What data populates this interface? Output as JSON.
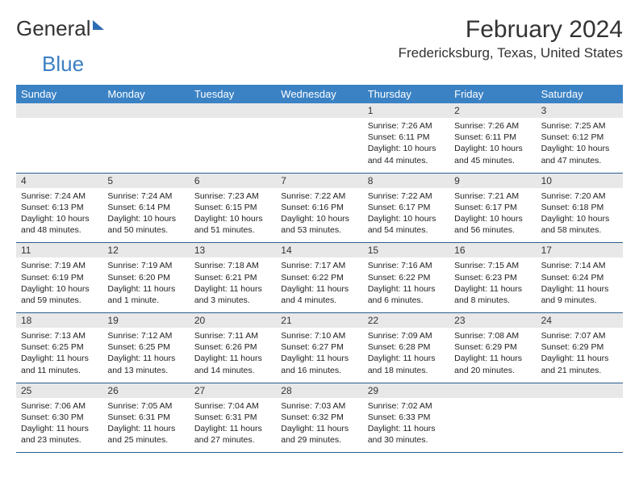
{
  "logo": {
    "part1": "General",
    "part2": "Blue"
  },
  "title": "February 2024",
  "location": "Fredericksburg, Texas, United States",
  "colors": {
    "header_bg": "#3b82c4",
    "header_text": "#ffffff",
    "daynum_bg": "#e8e8e8",
    "border": "#2b5f8f",
    "logo_blue": "#3b7ec2",
    "text": "#222222"
  },
  "weekdays": [
    "Sunday",
    "Monday",
    "Tuesday",
    "Wednesday",
    "Thursday",
    "Friday",
    "Saturday"
  ],
  "weeks": [
    [
      {
        "day": "",
        "lines": []
      },
      {
        "day": "",
        "lines": []
      },
      {
        "day": "",
        "lines": []
      },
      {
        "day": "",
        "lines": []
      },
      {
        "day": "1",
        "lines": [
          "Sunrise: 7:26 AM",
          "Sunset: 6:11 PM",
          "Daylight: 10 hours",
          "and 44 minutes."
        ]
      },
      {
        "day": "2",
        "lines": [
          "Sunrise: 7:26 AM",
          "Sunset: 6:11 PM",
          "Daylight: 10 hours",
          "and 45 minutes."
        ]
      },
      {
        "day": "3",
        "lines": [
          "Sunrise: 7:25 AM",
          "Sunset: 6:12 PM",
          "Daylight: 10 hours",
          "and 47 minutes."
        ]
      }
    ],
    [
      {
        "day": "4",
        "lines": [
          "Sunrise: 7:24 AM",
          "Sunset: 6:13 PM",
          "Daylight: 10 hours",
          "and 48 minutes."
        ]
      },
      {
        "day": "5",
        "lines": [
          "Sunrise: 7:24 AM",
          "Sunset: 6:14 PM",
          "Daylight: 10 hours",
          "and 50 minutes."
        ]
      },
      {
        "day": "6",
        "lines": [
          "Sunrise: 7:23 AM",
          "Sunset: 6:15 PM",
          "Daylight: 10 hours",
          "and 51 minutes."
        ]
      },
      {
        "day": "7",
        "lines": [
          "Sunrise: 7:22 AM",
          "Sunset: 6:16 PM",
          "Daylight: 10 hours",
          "and 53 minutes."
        ]
      },
      {
        "day": "8",
        "lines": [
          "Sunrise: 7:22 AM",
          "Sunset: 6:17 PM",
          "Daylight: 10 hours",
          "and 54 minutes."
        ]
      },
      {
        "day": "9",
        "lines": [
          "Sunrise: 7:21 AM",
          "Sunset: 6:17 PM",
          "Daylight: 10 hours",
          "and 56 minutes."
        ]
      },
      {
        "day": "10",
        "lines": [
          "Sunrise: 7:20 AM",
          "Sunset: 6:18 PM",
          "Daylight: 10 hours",
          "and 58 minutes."
        ]
      }
    ],
    [
      {
        "day": "11",
        "lines": [
          "Sunrise: 7:19 AM",
          "Sunset: 6:19 PM",
          "Daylight: 10 hours",
          "and 59 minutes."
        ]
      },
      {
        "day": "12",
        "lines": [
          "Sunrise: 7:19 AM",
          "Sunset: 6:20 PM",
          "Daylight: 11 hours",
          "and 1 minute."
        ]
      },
      {
        "day": "13",
        "lines": [
          "Sunrise: 7:18 AM",
          "Sunset: 6:21 PM",
          "Daylight: 11 hours",
          "and 3 minutes."
        ]
      },
      {
        "day": "14",
        "lines": [
          "Sunrise: 7:17 AM",
          "Sunset: 6:22 PM",
          "Daylight: 11 hours",
          "and 4 minutes."
        ]
      },
      {
        "day": "15",
        "lines": [
          "Sunrise: 7:16 AM",
          "Sunset: 6:22 PM",
          "Daylight: 11 hours",
          "and 6 minutes."
        ]
      },
      {
        "day": "16",
        "lines": [
          "Sunrise: 7:15 AM",
          "Sunset: 6:23 PM",
          "Daylight: 11 hours",
          "and 8 minutes."
        ]
      },
      {
        "day": "17",
        "lines": [
          "Sunrise: 7:14 AM",
          "Sunset: 6:24 PM",
          "Daylight: 11 hours",
          "and 9 minutes."
        ]
      }
    ],
    [
      {
        "day": "18",
        "lines": [
          "Sunrise: 7:13 AM",
          "Sunset: 6:25 PM",
          "Daylight: 11 hours",
          "and 11 minutes."
        ]
      },
      {
        "day": "19",
        "lines": [
          "Sunrise: 7:12 AM",
          "Sunset: 6:25 PM",
          "Daylight: 11 hours",
          "and 13 minutes."
        ]
      },
      {
        "day": "20",
        "lines": [
          "Sunrise: 7:11 AM",
          "Sunset: 6:26 PM",
          "Daylight: 11 hours",
          "and 14 minutes."
        ]
      },
      {
        "day": "21",
        "lines": [
          "Sunrise: 7:10 AM",
          "Sunset: 6:27 PM",
          "Daylight: 11 hours",
          "and 16 minutes."
        ]
      },
      {
        "day": "22",
        "lines": [
          "Sunrise: 7:09 AM",
          "Sunset: 6:28 PM",
          "Daylight: 11 hours",
          "and 18 minutes."
        ]
      },
      {
        "day": "23",
        "lines": [
          "Sunrise: 7:08 AM",
          "Sunset: 6:29 PM",
          "Daylight: 11 hours",
          "and 20 minutes."
        ]
      },
      {
        "day": "24",
        "lines": [
          "Sunrise: 7:07 AM",
          "Sunset: 6:29 PM",
          "Daylight: 11 hours",
          "and 21 minutes."
        ]
      }
    ],
    [
      {
        "day": "25",
        "lines": [
          "Sunrise: 7:06 AM",
          "Sunset: 6:30 PM",
          "Daylight: 11 hours",
          "and 23 minutes."
        ]
      },
      {
        "day": "26",
        "lines": [
          "Sunrise: 7:05 AM",
          "Sunset: 6:31 PM",
          "Daylight: 11 hours",
          "and 25 minutes."
        ]
      },
      {
        "day": "27",
        "lines": [
          "Sunrise: 7:04 AM",
          "Sunset: 6:31 PM",
          "Daylight: 11 hours",
          "and 27 minutes."
        ]
      },
      {
        "day": "28",
        "lines": [
          "Sunrise: 7:03 AM",
          "Sunset: 6:32 PM",
          "Daylight: 11 hours",
          "and 29 minutes."
        ]
      },
      {
        "day": "29",
        "lines": [
          "Sunrise: 7:02 AM",
          "Sunset: 6:33 PM",
          "Daylight: 11 hours",
          "and 30 minutes."
        ]
      },
      {
        "day": "",
        "lines": []
      },
      {
        "day": "",
        "lines": []
      }
    ]
  ]
}
